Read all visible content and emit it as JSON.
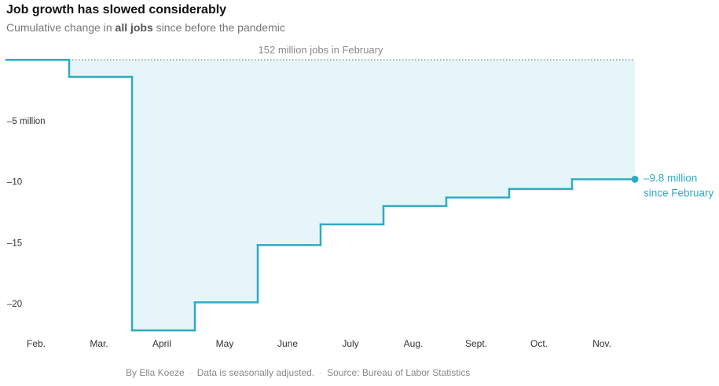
{
  "header": {
    "title": "Job growth has slowed considerably",
    "subtitle_pre": "Cumulative change in ",
    "subtitle_bold": "all jobs",
    "subtitle_post": " since before the pandemic"
  },
  "footer": {
    "byline": "By Ella Koeze",
    "separator": "·",
    "note": "Data is seasonally adjusted.",
    "source": "Source: Bureau of Labor Statistics"
  },
  "colors": {
    "line": "#2eabc3",
    "fill": "#e6f5f9",
    "baseline": "#777777",
    "text": "#333333",
    "muted": "#888888"
  },
  "chart_data": {
    "type": "line",
    "step": true,
    "categories": [
      "Feb.",
      "Mar.",
      "April",
      "May",
      "June",
      "July",
      "Aug.",
      "Sept.",
      "Oct.",
      "Nov."
    ],
    "values": [
      0,
      -1.4,
      -22.2,
      -19.9,
      -15.2,
      -13.5,
      -12.0,
      -11.3,
      -10.6,
      -9.8
    ],
    "ylim": [
      -22.9,
      0.4
    ],
    "yticks": [
      -5,
      -10,
      -15,
      -20
    ],
    "ytick_labels": [
      "–5 million",
      "–10",
      "–15",
      "–20"
    ],
    "baseline_label": "152 million jobs in February",
    "end_label_line1": "–9.8 million",
    "end_label_line2": "since February",
    "grid": false
  }
}
